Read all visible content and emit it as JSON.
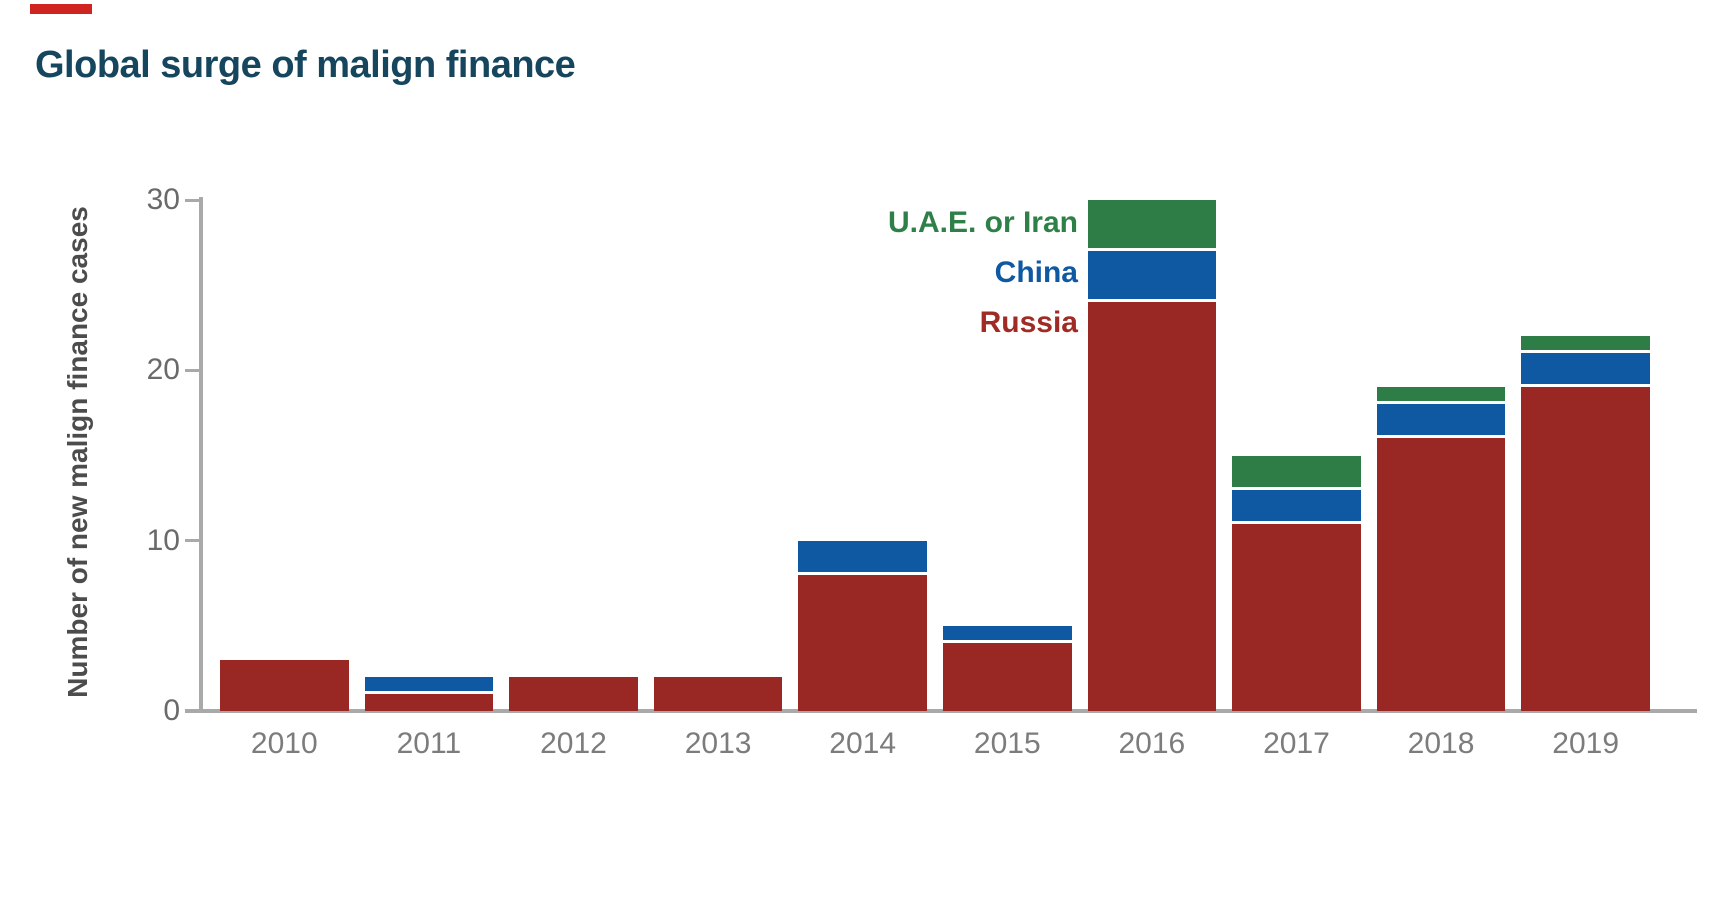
{
  "header": {
    "title": "Global surge of malign finance",
    "title_color": "#16455e"
  },
  "decoration": {
    "red_marker_color": "#d02420"
  },
  "axis": {
    "line_color": "#a9a9a9",
    "y_tick_label_color": "#6a6a6a",
    "x_tick_label_color": "#7c7c7c",
    "y_axis_title_color": "#4c4c4c"
  },
  "legend": {
    "items": [
      {
        "label": "U.A.E. or Iran",
        "color": "#2e8048"
      },
      {
        "label": "China",
        "color": "#0f58a2"
      },
      {
        "label": "Russia",
        "color": "#a02a24"
      }
    ]
  },
  "chart_data": {
    "type": "bar",
    "stacked": true,
    "title": "Global surge of malign finance",
    "xlabel": "",
    "ylabel": "Number of new malign finance cases",
    "categories": [
      "2010",
      "2011",
      "2012",
      "2013",
      "2014",
      "2015",
      "2016",
      "2017",
      "2018",
      "2019"
    ],
    "series": [
      {
        "name": "Russia",
        "color": "#992723",
        "values": [
          3,
          1,
          2,
          2,
          8,
          4,
          24,
          11,
          16,
          19
        ]
      },
      {
        "name": "China",
        "color": "#0f58a2",
        "values": [
          0,
          1,
          0,
          0,
          2,
          1,
          3,
          2,
          2,
          2
        ]
      },
      {
        "name": "U.A.E. or Iran",
        "color": "#2e7d46",
        "values": [
          0,
          0,
          0,
          0,
          0,
          0,
          3,
          2,
          1,
          1
        ]
      }
    ],
    "totals": [
      3,
      2,
      2,
      2,
      10,
      5,
      30,
      15,
      19,
      22
    ],
    "ylim": [
      0,
      30
    ],
    "yticks": [
      0,
      10,
      20,
      30
    ],
    "grid": false,
    "legend_position": "inside-top-right"
  }
}
